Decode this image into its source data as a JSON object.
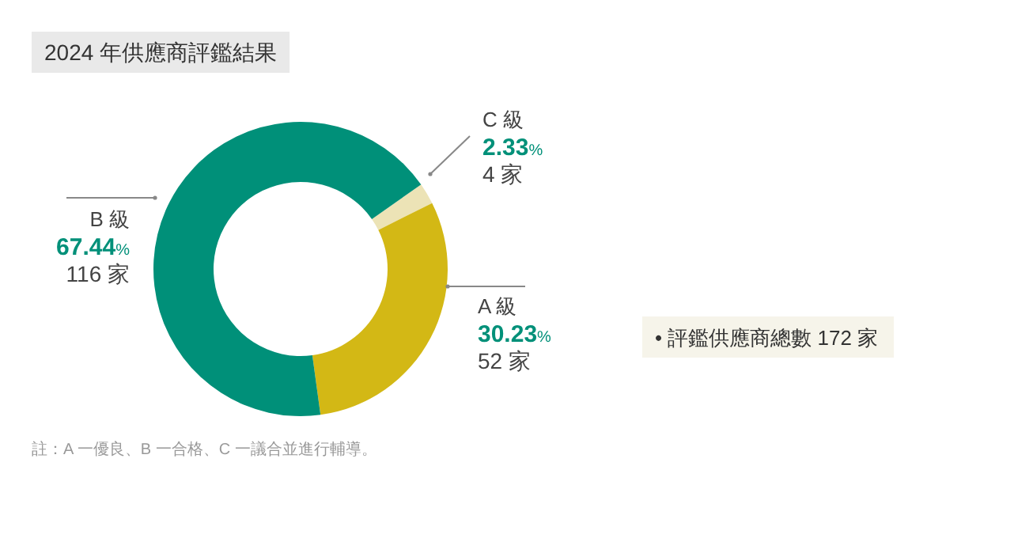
{
  "chart_data": {
    "type": "donut",
    "title": "2024 年供應商評鑑結果",
    "categories": [
      "C 級",
      "A 級",
      "B 級"
    ],
    "values": [
      2.33,
      30.23,
      67.44
    ],
    "colors": [
      "#ece3b6",
      "#d3b815",
      "#009079"
    ],
    "value_labels": [
      "2.33%\n4 家",
      "30.23%\n52 家",
      "67.44%\n116 家"
    ],
    "annotations": [
      "• 評鑑供應商總數 172 家",
      "註：A 一優良、B 一合格、C 一議合並進行輔導。"
    ]
  }
}
